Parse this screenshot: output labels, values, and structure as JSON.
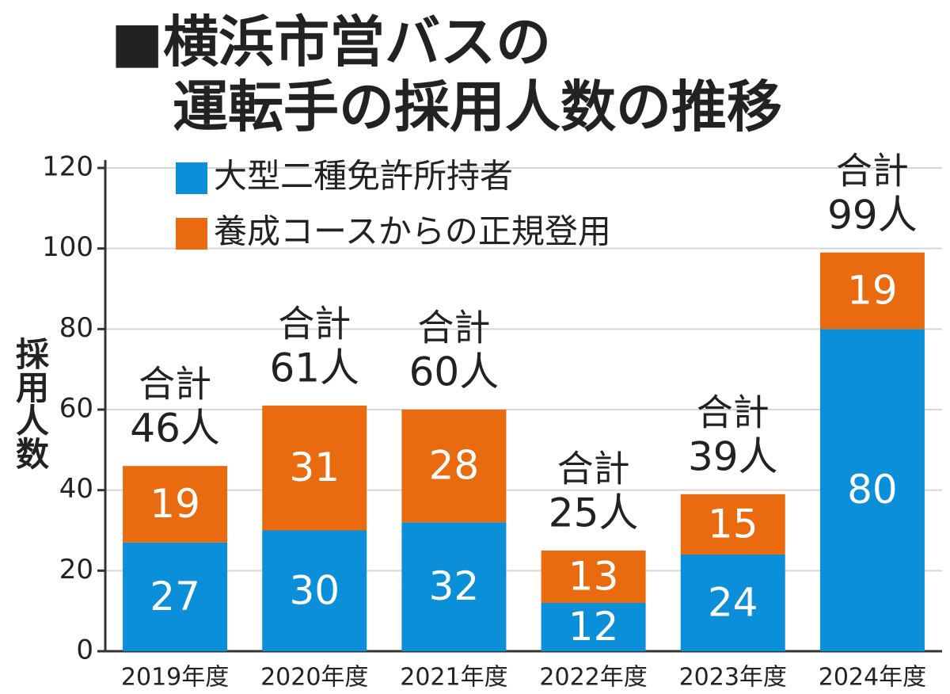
{
  "chart_data": {
    "type": "stacked_bar",
    "title": [
      "■横浜市営バスの",
      "運転手の採用人数の推移"
    ],
    "ylabel": "採用人数",
    "categories": [
      "2019年度",
      "2020年度",
      "2021年度",
      "2022年度",
      "2023年度",
      "2024年度"
    ],
    "series": [
      {
        "name": "大型二種免許所持者",
        "color": "#0a8fd8",
        "values": [
          27,
          30,
          32,
          12,
          24,
          80
        ]
      },
      {
        "name": "養成コースからの正規登用",
        "color": "#ea6a10",
        "values": [
          19,
          31,
          28,
          13,
          15,
          19
        ]
      }
    ],
    "totals": {
      "label": "合計",
      "values": [
        46,
        61,
        60,
        25,
        39,
        99
      ],
      "value_labels": [
        "46人",
        "61人",
        "60人",
        "25人",
        "39人",
        "99人"
      ]
    },
    "ylim": [
      0,
      120
    ],
    "yticks": [
      0,
      20,
      40,
      60,
      80,
      100,
      120
    ],
    "grid": true
  }
}
